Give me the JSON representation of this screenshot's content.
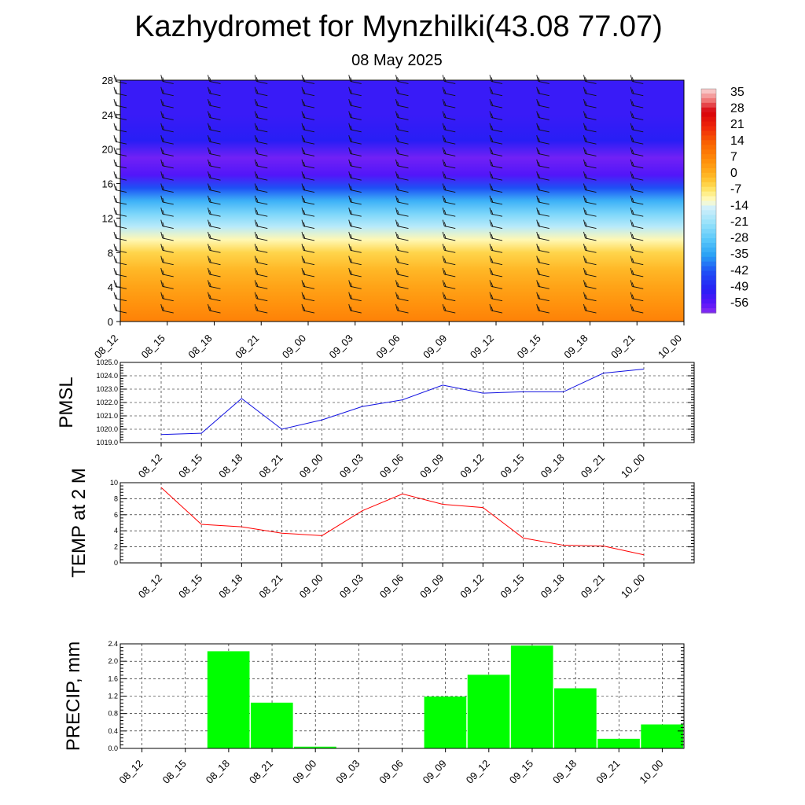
{
  "title": "Kazhydromet for Mynzhilki(43.08 77.07)",
  "subtitle": "08 May 2025",
  "colors": {
    "pmsl_line": "#1010e0",
    "temp_line": "#ff0000",
    "precip_bar": "#00ff00",
    "grid": "#000000"
  },
  "chart_data": [
    {
      "type": "heatmap",
      "title": "",
      "xlabel": "",
      "ylabel": "",
      "categories": [
        "08_12",
        "08_15",
        "08_18",
        "08_21",
        "09_00",
        "09_03",
        "09_06",
        "09_09",
        "09_12",
        "09_15",
        "09_18",
        "09_21",
        "10_00"
      ],
      "y_ticks": [
        0,
        4,
        8,
        12,
        16,
        20,
        24,
        28
      ],
      "ylim": [
        0,
        28
      ],
      "colorbar": {
        "labels": [
          "35",
          "28",
          "21",
          "14",
          "7",
          "0",
          "-7",
          "-14",
          "-21",
          "-28",
          "-35",
          "-42",
          "-49",
          "-56"
        ],
        "range": [
          -60,
          38
        ]
      },
      "temperature_profile_by_height": [
        {
          "height": 0,
          "value": 9
        },
        {
          "height": 2,
          "value": 6
        },
        {
          "height": 4,
          "value": 3
        },
        {
          "height": 6,
          "value": 0
        },
        {
          "height": 8,
          "value": -4
        },
        {
          "height": 9.5,
          "value": -10
        },
        {
          "height": 11,
          "value": -17
        },
        {
          "height": 12.5,
          "value": -24
        },
        {
          "height": 14,
          "value": -32
        },
        {
          "height": 15.5,
          "value": -42
        },
        {
          "height": 17,
          "value": -55
        },
        {
          "height": 19,
          "value": -58
        },
        {
          "height": 21,
          "value": -50
        },
        {
          "height": 24,
          "value": -52
        },
        {
          "height": 28,
          "value": -52
        }
      ],
      "wind_barbs": "westerly wind barbs plotted at every time step and height level"
    },
    {
      "type": "line",
      "title": "",
      "xlabel": "",
      "ylabel": "PMSL",
      "categories": [
        "08_12",
        "08_15",
        "08_18",
        "08_21",
        "09_00",
        "09_03",
        "09_06",
        "09_09",
        "09_12",
        "09_15",
        "09_18",
        "09_21",
        "10_00"
      ],
      "series": [
        {
          "values": [
            1019.6,
            1019.7,
            1022.3,
            1020.0,
            1020.7,
            1021.7,
            1022.2,
            1023.3,
            1022.7,
            1022.8,
            1022.8,
            1024.2,
            1024.5
          ]
        }
      ],
      "ylim": [
        1019.0,
        1025.0
      ],
      "y_ticks": [
        "1019.0",
        "1020.0",
        "1021.0",
        "1022.0",
        "1023.0",
        "1024.0",
        "1025.0"
      ],
      "grid": true
    },
    {
      "type": "line",
      "title": "",
      "xlabel": "",
      "ylabel": "TEMP at 2 M",
      "categories": [
        "08_12",
        "08_15",
        "08_18",
        "08_21",
        "09_00",
        "09_03",
        "09_06",
        "09_09",
        "09_12",
        "09_15",
        "09_18",
        "09_21",
        "10_00"
      ],
      "series": [
        {
          "values": [
            9.4,
            4.8,
            4.5,
            3.7,
            3.4,
            6.5,
            8.6,
            7.3,
            6.9,
            3.1,
            2.2,
            2.1,
            1.0
          ]
        }
      ],
      "ylim": [
        0,
        10
      ],
      "y_ticks": [
        "0",
        "2",
        "4",
        "6",
        "8",
        "10"
      ],
      "grid": true
    },
    {
      "type": "bar",
      "title": "",
      "xlabel": "",
      "ylabel": "PRECIP, mm",
      "categories": [
        "08_12",
        "08_15",
        "08_18",
        "08_21",
        "09_00",
        "09_03",
        "09_06",
        "09_09",
        "09_12",
        "09_15",
        "09_18",
        "09_21",
        "10_00"
      ],
      "values": [
        0,
        0,
        2.23,
        1.05,
        0.04,
        0,
        0,
        1.19,
        1.69,
        2.36,
        1.38,
        0.22,
        0.55
      ],
      "ylim": [
        0,
        2.4
      ],
      "y_ticks": [
        "0.0",
        "0.4",
        "0.8",
        "1.2",
        "1.6",
        "2.0",
        "2.4"
      ],
      "grid": true
    }
  ]
}
